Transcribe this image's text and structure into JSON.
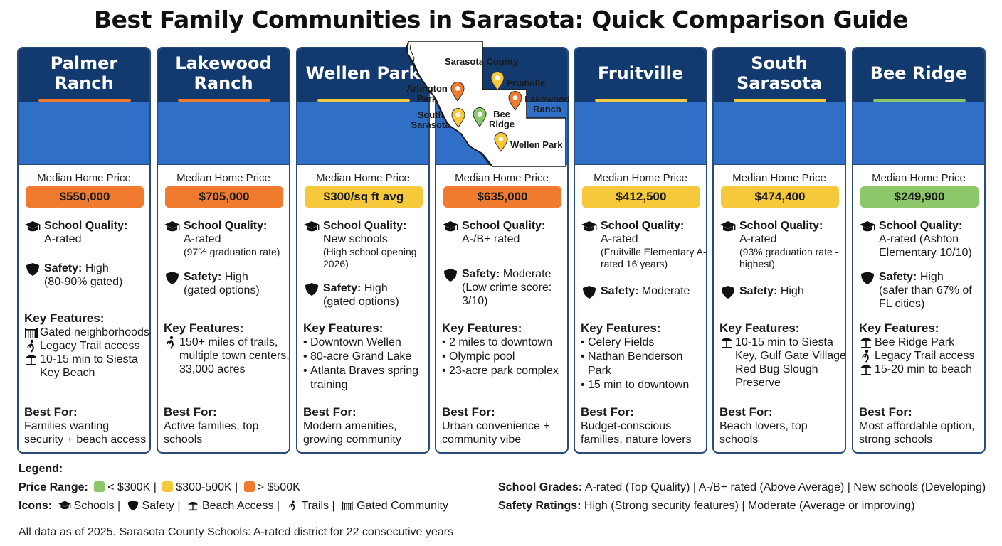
{
  "title": "Best Family Communities in Sarasota: Quick Comparison Guide",
  "colors": {
    "header": "#123a6e",
    "band": "#2f6fc7",
    "orange": "#f07a2e",
    "yellow": "#f5c93b",
    "green": "#8cc86a"
  },
  "common": {
    "price_label": "Median Home Price",
    "school_label": "School Quality:",
    "safety_label": "Safety:",
    "features_label": "Key Features:",
    "best_label": "Best For:"
  },
  "map": {
    "title": "Sarasota County",
    "labels": [
      "Arlington Park",
      "Fruitville",
      "Lakewood Ranch",
      "South Sarasota",
      "Bee Ridge",
      "Wellen Park"
    ]
  },
  "communities": [
    {
      "name": "Palmer Ranch",
      "price": "$550,000",
      "price_color": "#f07a2e",
      "accent": "#f07a2e",
      "school": "A-rated",
      "school_note": "",
      "safety": "High",
      "safety_note": "(80-90% gated)",
      "features": [
        {
          "icon": "gated-community-icon",
          "text": "Gated neighborhoods"
        },
        {
          "icon": "trails-icon",
          "text": "Legacy Trail access"
        },
        {
          "icon": "beach-access-icon",
          "text": "10-15 min to Siesta Key Beach"
        }
      ],
      "best_for": "Families wanting security + beach access"
    },
    {
      "name": "Lakewood Ranch",
      "price": "$705,000",
      "price_color": "#f07a2e",
      "accent": "#f07a2e",
      "school": "A-rated",
      "school_note": "(97% graduation rate)",
      "safety": "High",
      "safety_note": "(gated options)",
      "features": [
        {
          "icon": "trails-icon",
          "text": "150+ miles of trails, multiple town centers, 33,000 acres"
        }
      ],
      "best_for": "Active families, top schools"
    },
    {
      "name": "Wellen Park",
      "price": "$300/sq ft avg",
      "price_color": "#f5c93b",
      "accent": "#f5c93b",
      "school": "New schools",
      "school_note": "(High school opening 2026)",
      "safety": "High",
      "safety_note": "(gated options)",
      "bullets": [
        "Downtown Wellen",
        "80-acre Grand Lake",
        "Atlanta Braves spring training"
      ],
      "best_for": "Modern amenities, growing community"
    },
    {
      "name": "",
      "price": "$635,000",
      "price_color": "#f07a2e",
      "accent": "",
      "school": "A-/B+ rated",
      "school_note": "",
      "safety": "Moderate",
      "safety_note": "(Low crime score: 3/10)",
      "bullets": [
        "2 miles to downtown",
        "Olympic pool",
        "23-acre park complex"
      ],
      "best_for": "Urban convenience + community vibe"
    },
    {
      "name": "Fruitville",
      "price": "$412,500",
      "price_color": "#f5c93b",
      "accent": "#f5c93b",
      "school": "A-rated",
      "school_note": "(Fruitville Elementary A-rated 16 years)",
      "safety": "Moderate",
      "safety_note": "",
      "bullets": [
        "Celery Fields",
        "Nathan Benderson Park",
        "15 min to downtown"
      ],
      "best_for": "Budget-conscious families, nature lovers"
    },
    {
      "name": "South Sarasota",
      "price": "$474,400",
      "price_color": "#f5c93b",
      "accent": "#f5c93b",
      "school": "A-rated",
      "school_note": "(93% graduation rate - highest)",
      "safety": "High",
      "safety_note": "",
      "features": [
        {
          "icon": "beach-access-icon",
          "text": "10-15 min to Siesta Key, Gulf Gate Village Red Bug Slough Preserve"
        }
      ],
      "best_for": "Beach lovers, top schools"
    },
    {
      "name": "Bee Ridge",
      "price": "$249,900",
      "price_color": "#8cc86a",
      "accent": "#8cc86a",
      "school": "A-rated (Ashton Elementary 10/10)",
      "school_note": "",
      "safety": "High",
      "safety_note": "(safer than 67% of FL cities)",
      "features": [
        {
          "icon": "beach-access-icon",
          "text": "Bee Ridge Park"
        },
        {
          "icon": "trails-icon",
          "text": "Legacy Trail access"
        },
        {
          "icon": "beach-access-icon",
          "text": "15-20 min to beach"
        }
      ],
      "best_for": "Most affordable option, strong schools"
    }
  ],
  "legend": {
    "title": "Legend:",
    "price_range_label": "Price Range:",
    "price_ranges": [
      "< $300K",
      "$300-500K",
      "> $500K"
    ],
    "icons_label": "Icons:",
    "icons": [
      "Schools",
      "Safety",
      "Beach Access",
      "Trails",
      "Gated Community"
    ],
    "school_grades_label": "School Grades:",
    "school_grades_text": "A-rated (Top Quality) | A-/B+ rated (Above Average) | New schools (Developing)",
    "safety_ratings_label": "Safety Ratings:",
    "safety_ratings_text": "High (Strong security features) | Moderate (Average or improving)"
  },
  "footnote": "All data as of 2025. Sarasota County Schools: A-rated district for 22 consecutive years"
}
